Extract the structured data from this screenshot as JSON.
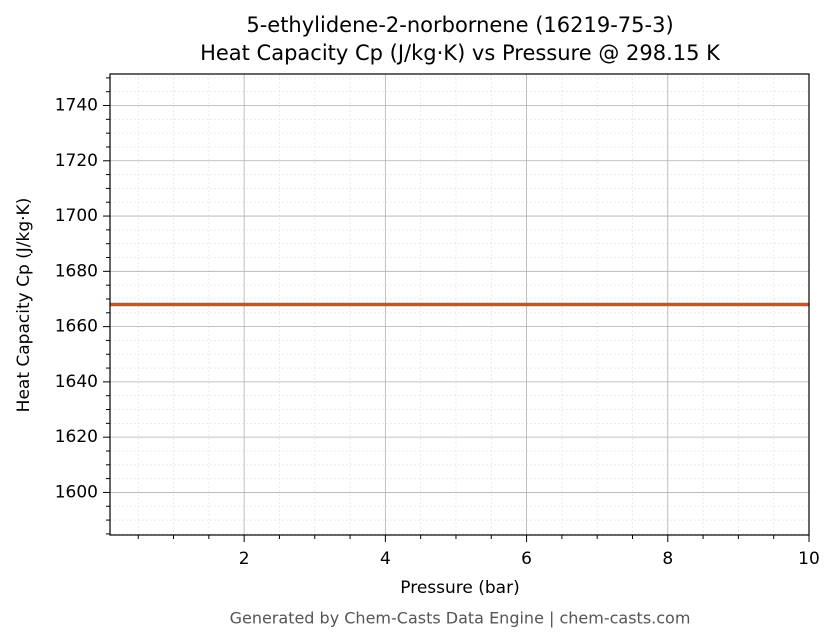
{
  "chart_data": {
    "type": "line",
    "title": "5-ethylidene-2-norbornene (16219-75-3)",
    "subtitle": "Heat Capacity Cp (J/kg·K) vs Pressure @ 298.15 K",
    "xlabel": "Pressure (bar)",
    "ylabel": "Heat Capacity Cp (J/kg·K)",
    "x": [
      0.1,
      10
    ],
    "series": [
      {
        "name": "Heat Capacity Cp",
        "color": "#c8522a",
        "values": [
          1668,
          1668
        ]
      }
    ],
    "xlim": [
      0.1,
      10
    ],
    "xticks": [
      2,
      4,
      6,
      8,
      10
    ],
    "ylim": [
      1584.6,
      1751.4
    ],
    "yticks": [
      1600,
      1620,
      1640,
      1660,
      1680,
      1700,
      1720,
      1740
    ],
    "xminorticks": [
      0.5,
      1,
      1.5,
      2.5,
      3,
      3.5,
      4.5,
      5,
      5.5,
      6.5,
      7,
      7.5,
      8.5,
      9,
      9.5
    ],
    "yminorticks": [
      1585,
      1590,
      1595,
      1605,
      1610,
      1615,
      1625,
      1630,
      1635,
      1645,
      1650,
      1655,
      1665,
      1670,
      1675,
      1685,
      1690,
      1695,
      1705,
      1710,
      1715,
      1725,
      1730,
      1735,
      1745,
      1750
    ],
    "grid": true,
    "footer": "Generated by Chem-Casts Data Engine | chem-casts.com"
  }
}
